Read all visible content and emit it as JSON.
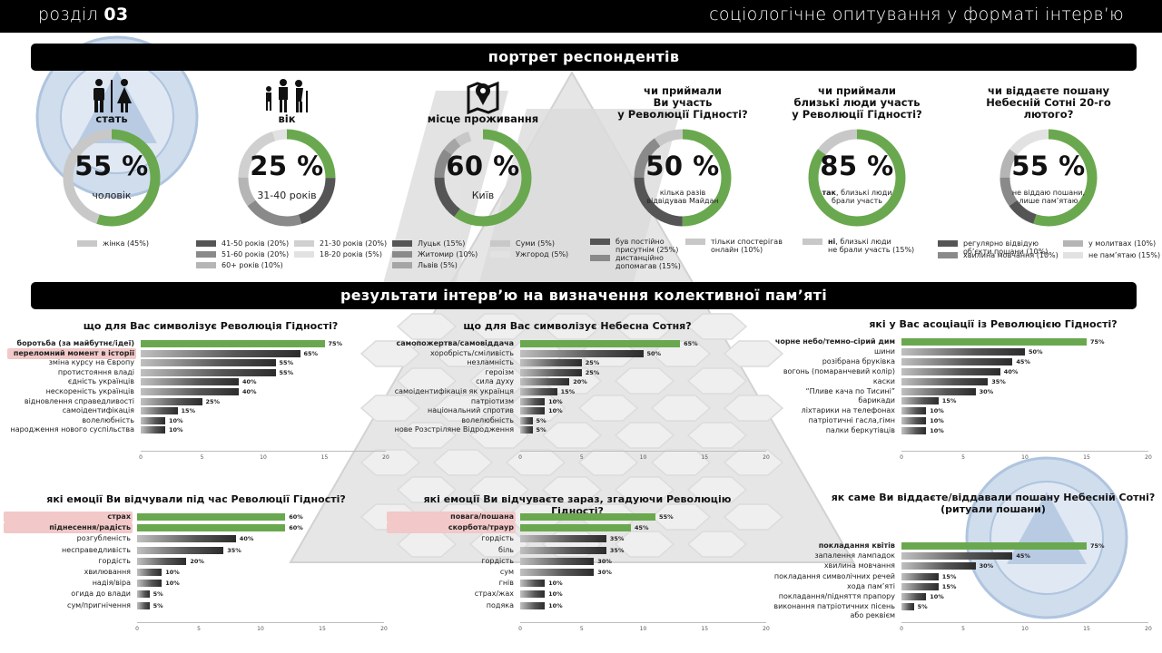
{
  "header": {
    "section_prefix": "розділ",
    "section_number": "03",
    "title": "соціологічне опитування у форматі інтерв’ю"
  },
  "banners": {
    "portrait": "портрет респондентів",
    "results": "результати інтерв’ю на визначення колективної пам’яті"
  },
  "colors": {
    "green": "#6aa84f",
    "dark": "#555555",
    "mid": "#8a8a8a",
    "light": "#c8c8c8"
  },
  "portrait": [
    {
      "title": "стать",
      "icon": "people-gender-icon",
      "pct": "55 %",
      "sub": "чоловік",
      "segments": [
        {
          "v": 55,
          "c": "#6aa84f"
        },
        {
          "v": 45,
          "c": "#c8c8c8"
        }
      ],
      "legend": [
        {
          "label": "жінка (45%)",
          "color": "#c8c8c8"
        }
      ]
    },
    {
      "title": "вік",
      "icon": "people-age-icon",
      "pct": "25 %",
      "sub": "31-40 років",
      "segments": [
        {
          "v": 25,
          "c": "#6aa84f"
        },
        {
          "v": 20,
          "c": "#555555"
        },
        {
          "v": 20,
          "c": "#8a8a8a"
        },
        {
          "v": 10,
          "c": "#b5b5b5"
        },
        {
          "v": 20,
          "c": "#d0d0d0"
        },
        {
          "v": 5,
          "c": "#e2e2e2"
        }
      ],
      "legend": [
        {
          "label": "41-50 років (20%)",
          "color": "#555555"
        },
        {
          "label": "21-30 років (20%)",
          "color": "#d0d0d0"
        },
        {
          "label": "51-60 років (20%)",
          "color": "#8a8a8a"
        },
        {
          "label": "18-20 років (5%)",
          "color": "#e2e2e2"
        },
        {
          "label": "60+ років (10%)",
          "color": "#b5b5b5"
        }
      ]
    },
    {
      "title": "місце проживання",
      "icon": "map-pin-icon",
      "pct": "60 %",
      "sub": "Київ",
      "segments": [
        {
          "v": 60,
          "c": "#6aa84f"
        },
        {
          "v": 15,
          "c": "#555555"
        },
        {
          "v": 10,
          "c": "#8a8a8a"
        },
        {
          "v": 5,
          "c": "#a5a5a5"
        },
        {
          "v": 5,
          "c": "#c8c8c8"
        },
        {
          "v": 5,
          "c": "#e2e2e2"
        }
      ],
      "legend": [
        {
          "label": "Луцьк (15%)",
          "color": "#555555"
        },
        {
          "label": "Суми (5%)",
          "color": "#c8c8c8"
        },
        {
          "label": "Житомир (10%)",
          "color": "#8a8a8a"
        },
        {
          "label": "Ужгород (5%)",
          "color": "#e2e2e2"
        },
        {
          "label": "Львів (5%)",
          "color": "#a5a5a5"
        }
      ]
    },
    {
      "title": "чи приймали\nВи участь\nу Революції Гідності?",
      "pct": "50 %",
      "sub": "кілька разів\nвідвідував Майдан",
      "segments": [
        {
          "v": 50,
          "c": "#6aa84f"
        },
        {
          "v": 25,
          "c": "#555555"
        },
        {
          "v": 15,
          "c": "#8a8a8a"
        },
        {
          "v": 10,
          "c": "#c8c8c8"
        }
      ],
      "legend": [
        {
          "label": "був постійно\nприсутнім (25%)",
          "color": "#555555"
        },
        {
          "label": "тільки спостерігав\nонлайн (10%)",
          "color": "#c8c8c8"
        },
        {
          "label": "дистанційно\nдопомагав (15%)",
          "color": "#8a8a8a"
        }
      ]
    },
    {
      "title": "чи приймали\nблизькі люди участь\nу Революції Гідності?",
      "pct": "85 %",
      "sub_bold": "так",
      "sub": ", близькі люди\nбрали участь",
      "segments": [
        {
          "v": 85,
          "c": "#6aa84f"
        },
        {
          "v": 15,
          "c": "#c8c8c8"
        }
      ],
      "legend": [
        {
          "label_bold": "ні",
          "label": ", близькі люди\nне брали участь (15%)",
          "color": "#c8c8c8"
        }
      ]
    },
    {
      "title": "чи віддаєте пошану\nНебесній Сотні 20-го\nлютого?",
      "pct": "55 %",
      "sub": "не віддаю пошани,\nлише пам’ятаю",
      "segments": [
        {
          "v": 55,
          "c": "#6aa84f"
        },
        {
          "v": 10,
          "c": "#555555"
        },
        {
          "v": 10,
          "c": "#8a8a8a"
        },
        {
          "v": 10,
          "c": "#b5b5b5"
        },
        {
          "v": 15,
          "c": "#e2e2e2"
        }
      ],
      "legend": [
        {
          "label": "регулярно відвідую\nоб’єкти пошани (10%)",
          "color": "#555555"
        },
        {
          "label": "у молитвах (10%)",
          "color": "#b5b5b5"
        },
        {
          "label": "хвилина мовчання (10%)",
          "color": "#8a8a8a"
        },
        {
          "label": "не пам’ятаю (15%)",
          "color": "#e2e2e2"
        }
      ]
    }
  ],
  "chart_data": [
    {
      "type": "bar",
      "title": "що для Вас символізує Революція Гідності?",
      "xlim": [
        0,
        20
      ],
      "ticks": [
        0,
        5,
        10,
        15,
        20
      ],
      "categories": [
        "боротьба (за майбутнє/ідеї)",
        "переломний момент в історії",
        "зміна курсу на Європу",
        "протистояння владі",
        "єдність українців",
        "нескореність українців",
        "відновлення справедливості",
        "самоідентифікація",
        "волелюбність",
        "народження нового суспільства"
      ],
      "values": [
        15,
        13,
        11,
        11,
        8,
        8,
        5,
        3,
        2,
        2
      ],
      "labels": [
        "75%",
        "65%",
        "55%",
        "55%",
        "40%",
        "40%",
        "25%",
        "15%",
        "10%",
        "10%"
      ],
      "highlight": [
        1
      ]
    },
    {
      "type": "bar",
      "title": "що для Вас символізує Небесна Сотня?",
      "xlim": [
        0,
        20
      ],
      "ticks": [
        0,
        5,
        10,
        15,
        20
      ],
      "categories": [
        "самопожертва/самовіддача",
        "хоробрість/сміливість",
        "незламність",
        "героізм",
        "сила духу",
        "самоідентифікація як українця",
        "патріотизм",
        "національний спротив",
        "волелюбність",
        "нове Розстріляне Відродження"
      ],
      "values": [
        13,
        10,
        5,
        5,
        4,
        3,
        2,
        2,
        1,
        1
      ],
      "labels": [
        "65%",
        "50%",
        "25%",
        "25%",
        "20%",
        "15%",
        "10%",
        "10%",
        "5%",
        "5%"
      ],
      "highlight": []
    },
    {
      "type": "bar",
      "title": "які у Вас асоціації із Революцією Гідності?",
      "xlim": [
        0,
        20
      ],
      "ticks": [
        0,
        5,
        10,
        15,
        20
      ],
      "categories": [
        "чорне небо/темно-сірий дим",
        "шини",
        "розібрана бруківка",
        "вогонь (помаранчевий колір)",
        "каски",
        "“Пливе кача по Тисині”",
        "барикади",
        "ліхтарики на телефонах",
        "патріотичні гасла,гімн",
        "палки беркутівців"
      ],
      "values": [
        15,
        10,
        9,
        8,
        7,
        6,
        3,
        2,
        2,
        2
      ],
      "labels": [
        "75%",
        "50%",
        "45%",
        "40%",
        "35%",
        "30%",
        "15%",
        "10%",
        "10%",
        "10%"
      ],
      "highlight": []
    },
    {
      "type": "bar",
      "title": "які емоції Ви відчували під час Революції Гідності?",
      "xlim": [
        0,
        20
      ],
      "ticks": [
        0,
        5,
        10,
        15,
        20
      ],
      "categories": [
        "страх",
        "піднесення/радість",
        "розгубленість",
        "несправедливість",
        "гордість",
        "хвилювання",
        "надія/віра",
        "огида до влади",
        "сум/пригнічення"
      ],
      "values": [
        12,
        12,
        8,
        7,
        4,
        2,
        2,
        1,
        1
      ],
      "labels": [
        "60%",
        "60%",
        "40%",
        "35%",
        "20%",
        "10%",
        "10%",
        "5%",
        "5%"
      ],
      "highlight": [
        0,
        1
      ]
    },
    {
      "type": "bar",
      "title": "які емоції Ви відчуваєте зараз, згадуючи Революцію Гідності?",
      "xlim": [
        0,
        20
      ],
      "ticks": [
        0,
        5,
        10,
        15,
        20
      ],
      "categories": [
        "повага/пошана",
        "скорбота/траур",
        "гордість",
        "біль",
        "гордість",
        "сум",
        "гнів",
        "страх/жах",
        "подяка"
      ],
      "values": [
        11,
        9,
        7,
        7,
        6,
        6,
        2,
        2,
        2
      ],
      "labels": [
        "55%",
        "45%",
        "35%",
        "35%",
        "30%",
        "30%",
        "10%",
        "10%",
        "10%"
      ],
      "highlight": [
        0,
        1
      ]
    },
    {
      "type": "bar",
      "title": "як саме Ви віддаєте/віддавали пошану Небесній Сотні?\n(ритуали пошани)",
      "xlim": [
        0,
        20
      ],
      "ticks": [
        0,
        5,
        10,
        15,
        20
      ],
      "categories": [
        "покладання квітів",
        "запалення лампадок",
        "хвилина мовчання",
        "покладання символічних речей",
        "хода пам’яті",
        "покладання/підняття прапору",
        "виконання патріотичних пісень\nабо реквієм"
      ],
      "values": [
        15,
        9,
        6,
        3,
        3,
        2,
        1
      ],
      "labels": [
        "75%",
        "45%",
        "30%",
        "15%",
        "15%",
        "10%",
        "5%"
      ],
      "highlight": []
    }
  ]
}
